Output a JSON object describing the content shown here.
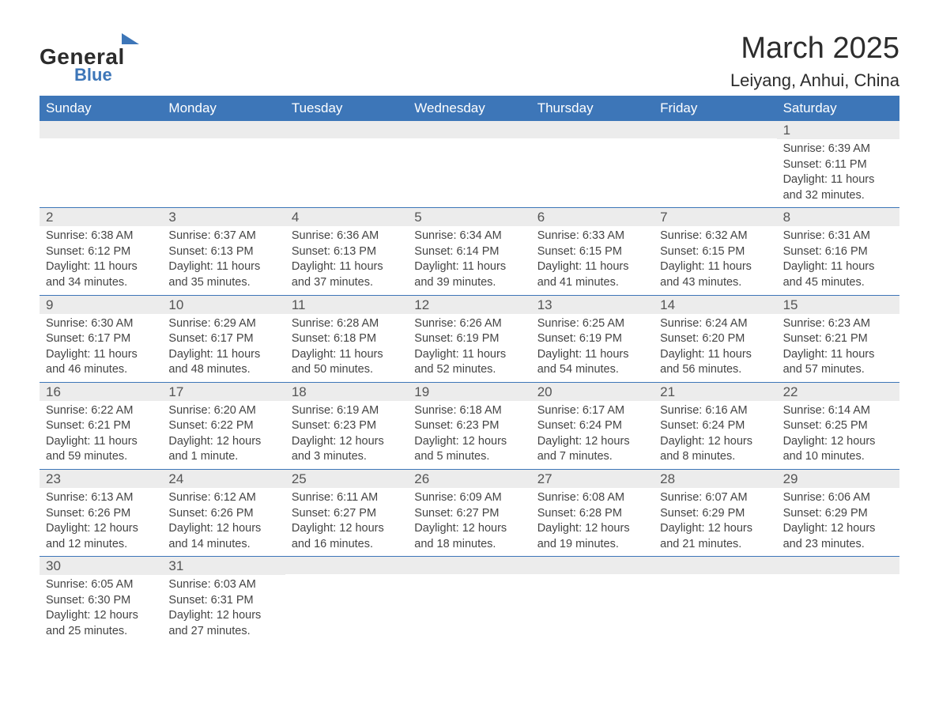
{
  "brand": {
    "name_part1": "General",
    "name_part2": "Blue",
    "accent_color": "#3d76b8"
  },
  "title": "March 2025",
  "location": "Leiyang, Anhui, China",
  "header_bg": "#3d76b8",
  "header_fg": "#ffffff",
  "row_separator_color": "#3d76b8",
  "daynum_bg": "#ececec",
  "text_color": "#444444",
  "day_names": [
    "Sunday",
    "Monday",
    "Tuesday",
    "Wednesday",
    "Thursday",
    "Friday",
    "Saturday"
  ],
  "weeks": [
    [
      null,
      null,
      null,
      null,
      null,
      null,
      {
        "n": "1",
        "sr": "6:39 AM",
        "ss": "6:11 PM",
        "dl": "11 hours and 32 minutes."
      }
    ],
    [
      {
        "n": "2",
        "sr": "6:38 AM",
        "ss": "6:12 PM",
        "dl": "11 hours and 34 minutes."
      },
      {
        "n": "3",
        "sr": "6:37 AM",
        "ss": "6:13 PM",
        "dl": "11 hours and 35 minutes."
      },
      {
        "n": "4",
        "sr": "6:36 AM",
        "ss": "6:13 PM",
        "dl": "11 hours and 37 minutes."
      },
      {
        "n": "5",
        "sr": "6:34 AM",
        "ss": "6:14 PM",
        "dl": "11 hours and 39 minutes."
      },
      {
        "n": "6",
        "sr": "6:33 AM",
        "ss": "6:15 PM",
        "dl": "11 hours and 41 minutes."
      },
      {
        "n": "7",
        "sr": "6:32 AM",
        "ss": "6:15 PM",
        "dl": "11 hours and 43 minutes."
      },
      {
        "n": "8",
        "sr": "6:31 AM",
        "ss": "6:16 PM",
        "dl": "11 hours and 45 minutes."
      }
    ],
    [
      {
        "n": "9",
        "sr": "6:30 AM",
        "ss": "6:17 PM",
        "dl": "11 hours and 46 minutes."
      },
      {
        "n": "10",
        "sr": "6:29 AM",
        "ss": "6:17 PM",
        "dl": "11 hours and 48 minutes."
      },
      {
        "n": "11",
        "sr": "6:28 AM",
        "ss": "6:18 PM",
        "dl": "11 hours and 50 minutes."
      },
      {
        "n": "12",
        "sr": "6:26 AM",
        "ss": "6:19 PM",
        "dl": "11 hours and 52 minutes."
      },
      {
        "n": "13",
        "sr": "6:25 AM",
        "ss": "6:19 PM",
        "dl": "11 hours and 54 minutes."
      },
      {
        "n": "14",
        "sr": "6:24 AM",
        "ss": "6:20 PM",
        "dl": "11 hours and 56 minutes."
      },
      {
        "n": "15",
        "sr": "6:23 AM",
        "ss": "6:21 PM",
        "dl": "11 hours and 57 minutes."
      }
    ],
    [
      {
        "n": "16",
        "sr": "6:22 AM",
        "ss": "6:21 PM",
        "dl": "11 hours and 59 minutes."
      },
      {
        "n": "17",
        "sr": "6:20 AM",
        "ss": "6:22 PM",
        "dl": "12 hours and 1 minute."
      },
      {
        "n": "18",
        "sr": "6:19 AM",
        "ss": "6:23 PM",
        "dl": "12 hours and 3 minutes."
      },
      {
        "n": "19",
        "sr": "6:18 AM",
        "ss": "6:23 PM",
        "dl": "12 hours and 5 minutes."
      },
      {
        "n": "20",
        "sr": "6:17 AM",
        "ss": "6:24 PM",
        "dl": "12 hours and 7 minutes."
      },
      {
        "n": "21",
        "sr": "6:16 AM",
        "ss": "6:24 PM",
        "dl": "12 hours and 8 minutes."
      },
      {
        "n": "22",
        "sr": "6:14 AM",
        "ss": "6:25 PM",
        "dl": "12 hours and 10 minutes."
      }
    ],
    [
      {
        "n": "23",
        "sr": "6:13 AM",
        "ss": "6:26 PM",
        "dl": "12 hours and 12 minutes."
      },
      {
        "n": "24",
        "sr": "6:12 AM",
        "ss": "6:26 PM",
        "dl": "12 hours and 14 minutes."
      },
      {
        "n": "25",
        "sr": "6:11 AM",
        "ss": "6:27 PM",
        "dl": "12 hours and 16 minutes."
      },
      {
        "n": "26",
        "sr": "6:09 AM",
        "ss": "6:27 PM",
        "dl": "12 hours and 18 minutes."
      },
      {
        "n": "27",
        "sr": "6:08 AM",
        "ss": "6:28 PM",
        "dl": "12 hours and 19 minutes."
      },
      {
        "n": "28",
        "sr": "6:07 AM",
        "ss": "6:29 PM",
        "dl": "12 hours and 21 minutes."
      },
      {
        "n": "29",
        "sr": "6:06 AM",
        "ss": "6:29 PM",
        "dl": "12 hours and 23 minutes."
      }
    ],
    [
      {
        "n": "30",
        "sr": "6:05 AM",
        "ss": "6:30 PM",
        "dl": "12 hours and 25 minutes."
      },
      {
        "n": "31",
        "sr": "6:03 AM",
        "ss": "6:31 PM",
        "dl": "12 hours and 27 minutes."
      },
      null,
      null,
      null,
      null,
      null
    ]
  ],
  "labels": {
    "sunrise": "Sunrise:",
    "sunset": "Sunset:",
    "daylight": "Daylight:"
  }
}
